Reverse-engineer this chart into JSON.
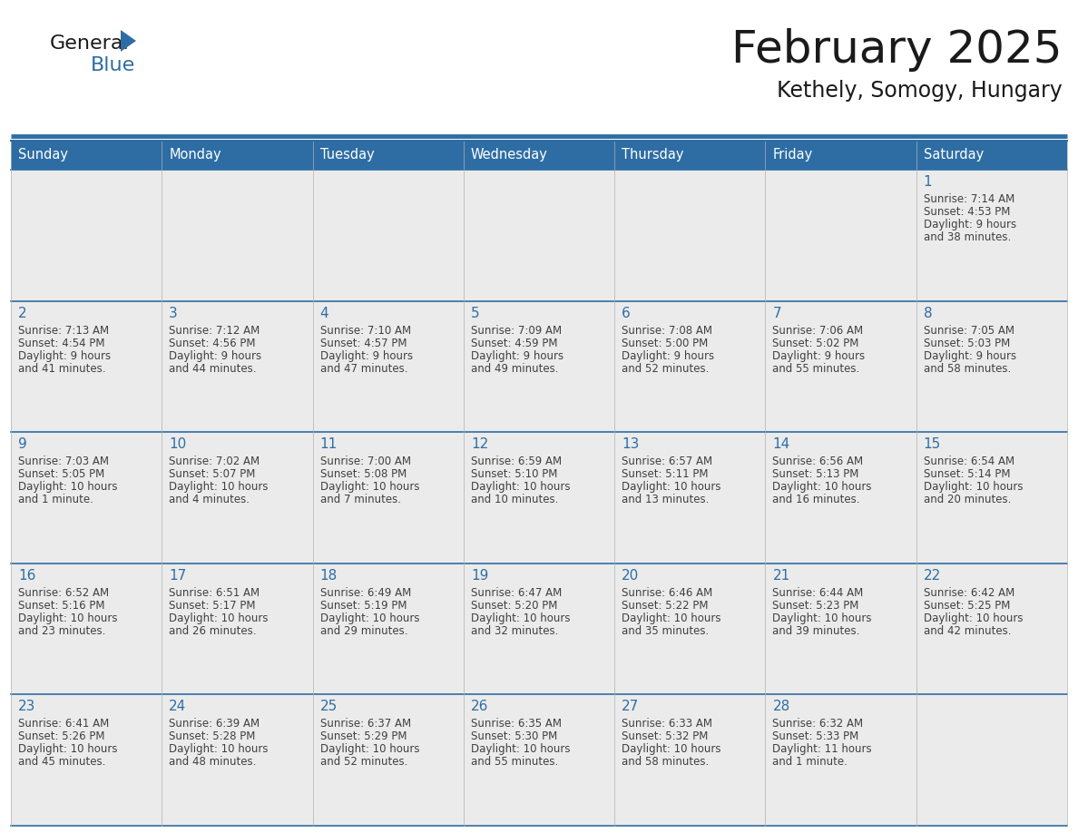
{
  "title": "February 2025",
  "subtitle": "Kethely, Somogy, Hungary",
  "header_bg": "#2E6DA4",
  "header_text_color": "#FFFFFF",
  "cell_bg_light": "#EBEBEB",
  "cell_bg_white": "#FFFFFF",
  "border_color": "#2E6DA4",
  "day_names": [
    "Sunday",
    "Monday",
    "Tuesday",
    "Wednesday",
    "Thursday",
    "Friday",
    "Saturday"
  ],
  "title_color": "#1a1a1a",
  "subtitle_color": "#1a1a1a",
  "day_number_color": "#2E6DA4",
  "cell_text_color": "#404040",
  "logo_general_color": "#1a1a1a",
  "logo_blue_color": "#2E6DA4",
  "logo_triangle_color": "#2E6DA4",
  "days": [
    {
      "day": 1,
      "col": 6,
      "row": 0,
      "sunrise": "7:14 AM",
      "sunset": "4:53 PM",
      "daylight_line1": "Daylight: 9 hours",
      "daylight_line2": "and 38 minutes."
    },
    {
      "day": 2,
      "col": 0,
      "row": 1,
      "sunrise": "7:13 AM",
      "sunset": "4:54 PM",
      "daylight_line1": "Daylight: 9 hours",
      "daylight_line2": "and 41 minutes."
    },
    {
      "day": 3,
      "col": 1,
      "row": 1,
      "sunrise": "7:12 AM",
      "sunset": "4:56 PM",
      "daylight_line1": "Daylight: 9 hours",
      "daylight_line2": "and 44 minutes."
    },
    {
      "day": 4,
      "col": 2,
      "row": 1,
      "sunrise": "7:10 AM",
      "sunset": "4:57 PM",
      "daylight_line1": "Daylight: 9 hours",
      "daylight_line2": "and 47 minutes."
    },
    {
      "day": 5,
      "col": 3,
      "row": 1,
      "sunrise": "7:09 AM",
      "sunset": "4:59 PM",
      "daylight_line1": "Daylight: 9 hours",
      "daylight_line2": "and 49 minutes."
    },
    {
      "day": 6,
      "col": 4,
      "row": 1,
      "sunrise": "7:08 AM",
      "sunset": "5:00 PM",
      "daylight_line1": "Daylight: 9 hours",
      "daylight_line2": "and 52 minutes."
    },
    {
      "day": 7,
      "col": 5,
      "row": 1,
      "sunrise": "7:06 AM",
      "sunset": "5:02 PM",
      "daylight_line1": "Daylight: 9 hours",
      "daylight_line2": "and 55 minutes."
    },
    {
      "day": 8,
      "col": 6,
      "row": 1,
      "sunrise": "7:05 AM",
      "sunset": "5:03 PM",
      "daylight_line1": "Daylight: 9 hours",
      "daylight_line2": "and 58 minutes."
    },
    {
      "day": 9,
      "col": 0,
      "row": 2,
      "sunrise": "7:03 AM",
      "sunset": "5:05 PM",
      "daylight_line1": "Daylight: 10 hours",
      "daylight_line2": "and 1 minute."
    },
    {
      "day": 10,
      "col": 1,
      "row": 2,
      "sunrise": "7:02 AM",
      "sunset": "5:07 PM",
      "daylight_line1": "Daylight: 10 hours",
      "daylight_line2": "and 4 minutes."
    },
    {
      "day": 11,
      "col": 2,
      "row": 2,
      "sunrise": "7:00 AM",
      "sunset": "5:08 PM",
      "daylight_line1": "Daylight: 10 hours",
      "daylight_line2": "and 7 minutes."
    },
    {
      "day": 12,
      "col": 3,
      "row": 2,
      "sunrise": "6:59 AM",
      "sunset": "5:10 PM",
      "daylight_line1": "Daylight: 10 hours",
      "daylight_line2": "and 10 minutes."
    },
    {
      "day": 13,
      "col": 4,
      "row": 2,
      "sunrise": "6:57 AM",
      "sunset": "5:11 PM",
      "daylight_line1": "Daylight: 10 hours",
      "daylight_line2": "and 13 minutes."
    },
    {
      "day": 14,
      "col": 5,
      "row": 2,
      "sunrise": "6:56 AM",
      "sunset": "5:13 PM",
      "daylight_line1": "Daylight: 10 hours",
      "daylight_line2": "and 16 minutes."
    },
    {
      "day": 15,
      "col": 6,
      "row": 2,
      "sunrise": "6:54 AM",
      "sunset": "5:14 PM",
      "daylight_line1": "Daylight: 10 hours",
      "daylight_line2": "and 20 minutes."
    },
    {
      "day": 16,
      "col": 0,
      "row": 3,
      "sunrise": "6:52 AM",
      "sunset": "5:16 PM",
      "daylight_line1": "Daylight: 10 hours",
      "daylight_line2": "and 23 minutes."
    },
    {
      "day": 17,
      "col": 1,
      "row": 3,
      "sunrise": "6:51 AM",
      "sunset": "5:17 PM",
      "daylight_line1": "Daylight: 10 hours",
      "daylight_line2": "and 26 minutes."
    },
    {
      "day": 18,
      "col": 2,
      "row": 3,
      "sunrise": "6:49 AM",
      "sunset": "5:19 PM",
      "daylight_line1": "Daylight: 10 hours",
      "daylight_line2": "and 29 minutes."
    },
    {
      "day": 19,
      "col": 3,
      "row": 3,
      "sunrise": "6:47 AM",
      "sunset": "5:20 PM",
      "daylight_line1": "Daylight: 10 hours",
      "daylight_line2": "and 32 minutes."
    },
    {
      "day": 20,
      "col": 4,
      "row": 3,
      "sunrise": "6:46 AM",
      "sunset": "5:22 PM",
      "daylight_line1": "Daylight: 10 hours",
      "daylight_line2": "and 35 minutes."
    },
    {
      "day": 21,
      "col": 5,
      "row": 3,
      "sunrise": "6:44 AM",
      "sunset": "5:23 PM",
      "daylight_line1": "Daylight: 10 hours",
      "daylight_line2": "and 39 minutes."
    },
    {
      "day": 22,
      "col": 6,
      "row": 3,
      "sunrise": "6:42 AM",
      "sunset": "5:25 PM",
      "daylight_line1": "Daylight: 10 hours",
      "daylight_line2": "and 42 minutes."
    },
    {
      "day": 23,
      "col": 0,
      "row": 4,
      "sunrise": "6:41 AM",
      "sunset": "5:26 PM",
      "daylight_line1": "Daylight: 10 hours",
      "daylight_line2": "and 45 minutes."
    },
    {
      "day": 24,
      "col": 1,
      "row": 4,
      "sunrise": "6:39 AM",
      "sunset": "5:28 PM",
      "daylight_line1": "Daylight: 10 hours",
      "daylight_line2": "and 48 minutes."
    },
    {
      "day": 25,
      "col": 2,
      "row": 4,
      "sunrise": "6:37 AM",
      "sunset": "5:29 PM",
      "daylight_line1": "Daylight: 10 hours",
      "daylight_line2": "and 52 minutes."
    },
    {
      "day": 26,
      "col": 3,
      "row": 4,
      "sunrise": "6:35 AM",
      "sunset": "5:30 PM",
      "daylight_line1": "Daylight: 10 hours",
      "daylight_line2": "and 55 minutes."
    },
    {
      "day": 27,
      "col": 4,
      "row": 4,
      "sunrise": "6:33 AM",
      "sunset": "5:32 PM",
      "daylight_line1": "Daylight: 10 hours",
      "daylight_line2": "and 58 minutes."
    },
    {
      "day": 28,
      "col": 5,
      "row": 4,
      "sunrise": "6:32 AM",
      "sunset": "5:33 PM",
      "daylight_line1": "Daylight: 11 hours",
      "daylight_line2": "and 1 minute."
    }
  ]
}
